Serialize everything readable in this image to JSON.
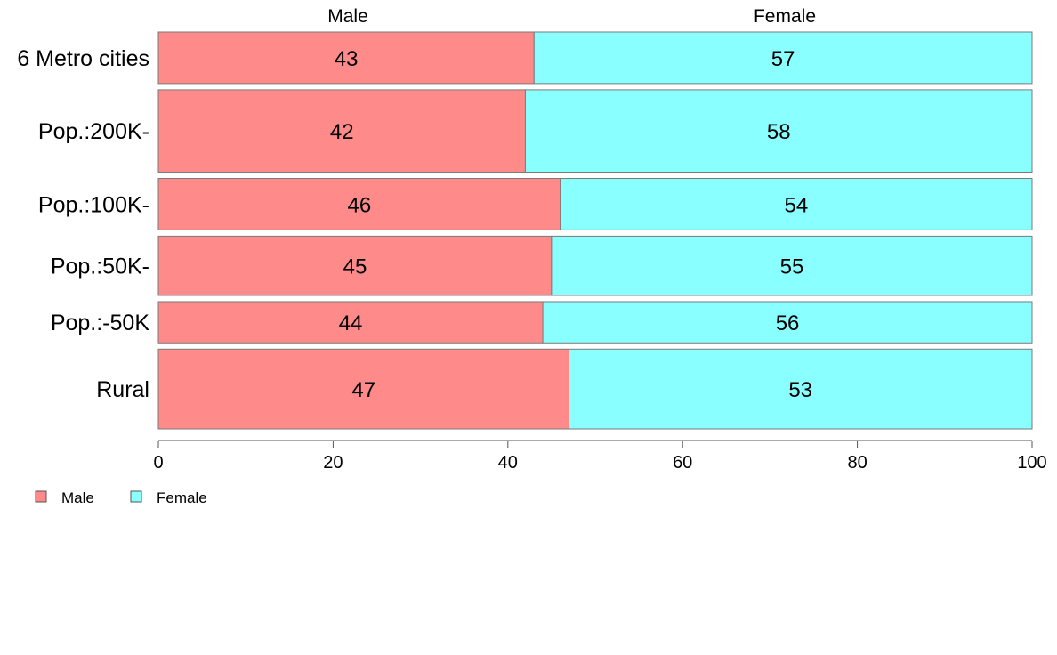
{
  "chart_data": {
    "type": "bar",
    "orientation": "horizontal",
    "stacked": true,
    "categories": [
      "6 Metro cities",
      "Pop.:200K-",
      "Pop.:100K-",
      "Pop.:50K-",
      "Pop.:-50K",
      "Rural"
    ],
    "series": [
      {
        "name": "Male",
        "values": [
          43,
          42,
          46,
          45,
          44,
          47
        ],
        "color": "#ff8a8a"
      },
      {
        "name": "Female",
        "values": [
          57,
          58,
          54,
          55,
          56,
          53
        ],
        "color": "#8affff"
      }
    ],
    "column_headers": [
      "Male",
      "Female"
    ],
    "xlim": [
      0,
      100
    ],
    "x_ticks": [
      0,
      20,
      40,
      60,
      80,
      100
    ],
    "grid": false,
    "legend_position": "bottom-left",
    "bar_weights": [
      1,
      1.6,
      1,
      1.15,
      0.8,
      1.55
    ]
  }
}
